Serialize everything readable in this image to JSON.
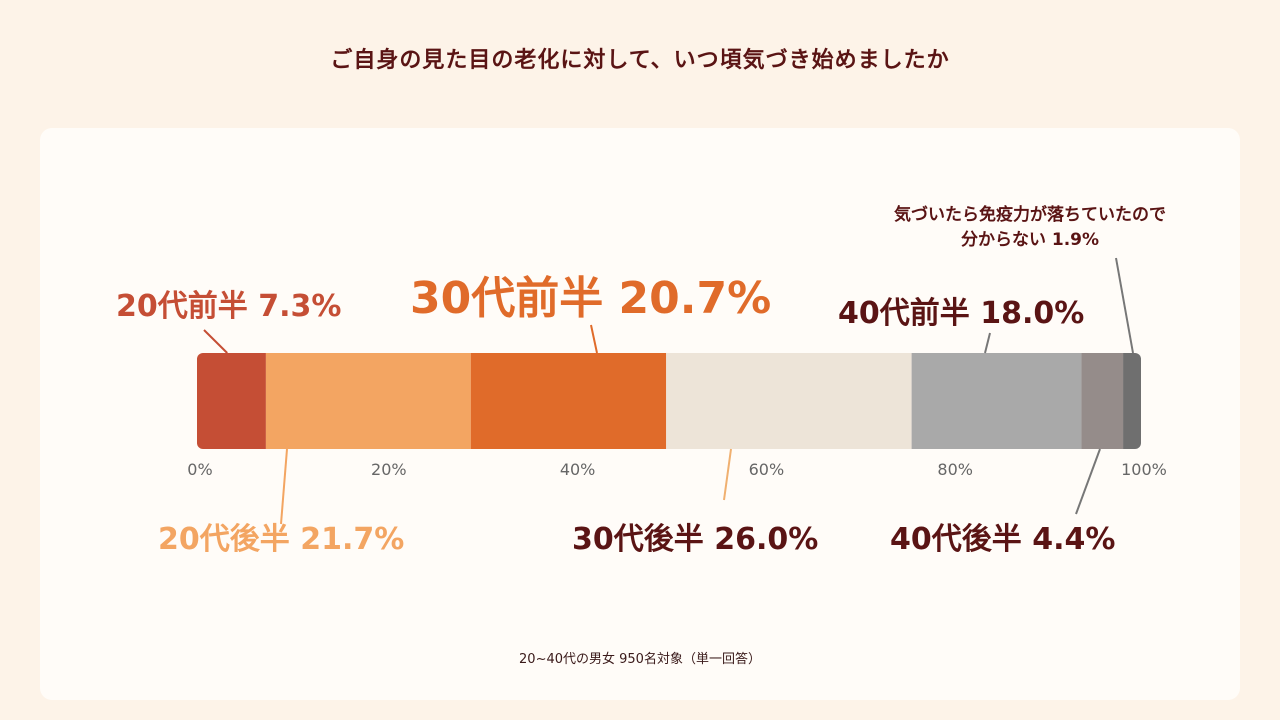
{
  "title": "ご自身の見た目の老化に対して、いつ頃気づき始めましたか",
  "note": "20~40代の男女 950名対象（単一回答）",
  "colors": {
    "background": "#fdf3e8",
    "card": "#fffcf8",
    "title": "#5a1414",
    "dark_label": "#5a1414"
  },
  "chart_data": {
    "type": "bar",
    "orientation": "horizontal-stacked-100",
    "x_ticks": [
      "0%",
      "20%",
      "40%",
      "60%",
      "80%",
      "100%"
    ],
    "xlim": [
      0,
      100
    ],
    "series": [
      {
        "name": "20代前半",
        "value": 7.3,
        "label": "20代前半 7.3%",
        "color": "#c54e35",
        "label_color": "#c54e35"
      },
      {
        "name": "20代後半",
        "value": 21.7,
        "label": "20代後半 21.7%",
        "color": "#f3a562",
        "label_color": "#f3a562"
      },
      {
        "name": "30代前半",
        "value": 20.7,
        "label": "30代前半 20.7%",
        "color": "#e06b2a",
        "label_color": "#e06b2a"
      },
      {
        "name": "30代後半",
        "value": 26.0,
        "label": "30代後半 26.0%",
        "color": "#ede4d8",
        "label_color": "#5a1414"
      },
      {
        "name": "40代前半",
        "value": 18.0,
        "label": "40代前半 18.0%",
        "color": "#a9a9a9",
        "label_color": "#5a1414"
      },
      {
        "name": "40代後半",
        "value": 4.4,
        "label": "40代後半 4.4%",
        "color": "#958c8a",
        "label_color": "#5a1414"
      },
      {
        "name": "気づいたら免疫力が落ちていたので分からない",
        "value": 1.9,
        "label_lines": [
          "気づいたら免疫力が落ちていたので",
          "分からない  1.9%"
        ],
        "color": "#6f6f6f",
        "label_color": "#5a1414"
      }
    ]
  }
}
